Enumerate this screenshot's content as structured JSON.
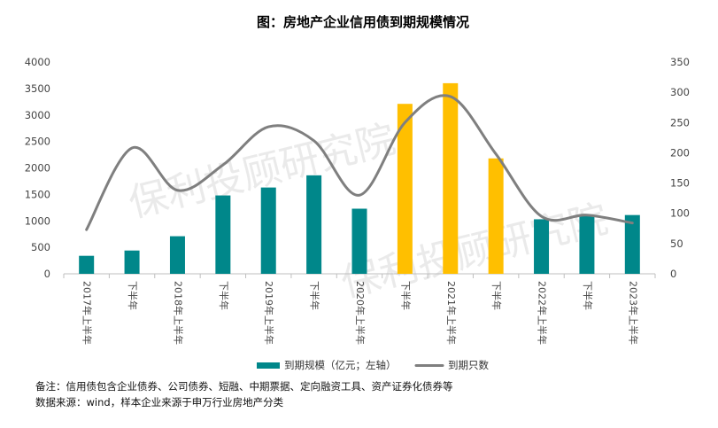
{
  "chart_data": {
    "type": "bar",
    "title": "图：房地产企业信用债到期规模情况",
    "watermark": "保利投顾研究院",
    "categories": [
      "2017年上半年",
      "下半年",
      "2018年上半年",
      "下半年",
      "2019年上半年",
      "下半年",
      "2020年上半年",
      "下半年",
      "2021年上半年",
      "下半年",
      "2022年上半年",
      "下半年",
      "2023年上半年"
    ],
    "series": [
      {
        "name": "到期规模（亿元；左轴）",
        "type": "bar",
        "axis": "left",
        "values": [
          340,
          440,
          710,
          1480,
          1630,
          1860,
          1230,
          3210,
          3600,
          2180,
          1030,
          1110,
          1110
        ],
        "colors": [
          "#00878a",
          "#00878a",
          "#00878a",
          "#00878a",
          "#00878a",
          "#00878a",
          "#00878a",
          "#ffbf00",
          "#ffbf00",
          "#ffbf00",
          "#00878a",
          "#00878a",
          "#00878a"
        ]
      },
      {
        "name": "到期只数",
        "type": "line",
        "axis": "right",
        "smooth": true,
        "color": "#7f7f7f",
        "values": [
          73,
          208,
          138,
          180,
          243,
          220,
          130,
          250,
          293,
          198,
          95,
          97,
          84
        ]
      }
    ],
    "y_left": {
      "min": 0,
      "max": 4000,
      "step": 500,
      "ticks": [
        "0",
        "500",
        "1000",
        "1500",
        "2000",
        "2500",
        "3000",
        "3500",
        "4000"
      ]
    },
    "y_right": {
      "min": 0,
      "max": 350,
      "step": 50,
      "ticks": [
        "0",
        "50",
        "100",
        "150",
        "200",
        "250",
        "300",
        "350"
      ]
    },
    "grid": false,
    "legend": "bottom"
  },
  "notes": [
    "备注：信用债包含企业债券、公司债券、短融、中期票据、定向融资工具、资产证券化债券等",
    "数据来源：wind，样本企业来源于申万行业房地产分类"
  ],
  "colors": {
    "teal": "#00878a",
    "gold": "#ffbf00",
    "line": "#7f7f7f",
    "axis": "#bfbfbf"
  }
}
